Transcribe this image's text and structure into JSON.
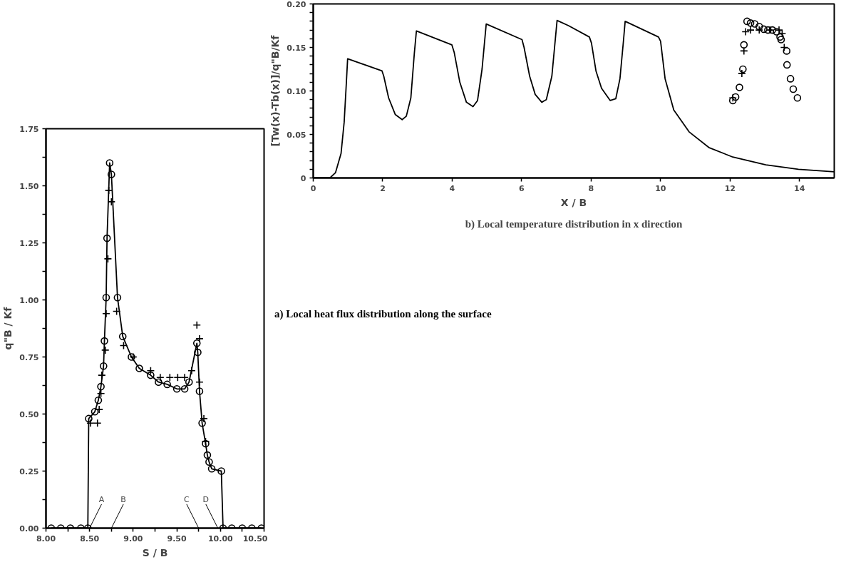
{
  "chart_data": [
    {
      "type": "line",
      "xlabel": "S / B",
      "ylabel": "q\"B / Kf",
      "xlim": [
        8,
        10.5
      ],
      "ylim": [
        0,
        1.75
      ],
      "xticks": [
        {
          "value": 8,
          "label": "8.00"
        },
        {
          "value": 8.25,
          "label": null
        },
        {
          "value": 8.5,
          "label": "8.50"
        },
        {
          "value": 8.75,
          "label": null
        },
        {
          "value": 9,
          "label": "9.00"
        },
        {
          "value": 9.25,
          "label": null
        },
        {
          "value": 9.5,
          "label": "9.50"
        },
        {
          "value": 9.75,
          "label": null
        },
        {
          "value": 10,
          "label": "10.00"
        },
        {
          "value": 10.25,
          "label": null
        },
        {
          "value": 10.5,
          "label": "10.50"
        }
      ],
      "yticks": [
        {
          "value": 0,
          "label": "0.00"
        },
        {
          "value": 0.125,
          "label": null
        },
        {
          "value": 0.25,
          "label": "0.25"
        },
        {
          "value": 0.375,
          "label": null
        },
        {
          "value": 0.5,
          "label": "0.50"
        },
        {
          "value": 0.625,
          "label": null
        },
        {
          "value": 0.75,
          "label": "0.75"
        },
        {
          "value": 0.875,
          "label": null
        },
        {
          "value": 1,
          "label": "1.00"
        },
        {
          "value": 1.125,
          "label": null
        },
        {
          "value": 1.25,
          "label": "1.25"
        },
        {
          "value": 1.375,
          "label": null
        },
        {
          "value": 1.5,
          "label": "1.50"
        },
        {
          "value": 1.625,
          "label": null
        },
        {
          "value": 1.75,
          "label": "1.75"
        }
      ],
      "series": [
        {
          "marker": "circle",
          "color": "#000000",
          "x": [
            8.06,
            8.17,
            8.28,
            8.4,
            8.48,
            8.49,
            8.56,
            8.6,
            8.63,
            8.66,
            8.67,
            8.69,
            8.7,
            8.73,
            8.75,
            8.82,
            8.88,
            8.98,
            9.07,
            9.2,
            9.29,
            9.39,
            9.5,
            9.59,
            9.64,
            9.73,
            9.74,
            9.76,
            9.79,
            9.83,
            9.85,
            9.87,
            9.9,
            10.01,
            10.03,
            10.13,
            10.25,
            10.36,
            10.47
          ],
          "values": [
            0,
            0,
            0,
            0,
            0,
            0.48,
            0.51,
            0.56,
            0.62,
            0.71,
            0.82,
            1.01,
            1.27,
            1.6,
            1.55,
            1.01,
            0.84,
            0.75,
            0.7,
            0.67,
            0.64,
            0.63,
            0.61,
            0.61,
            0.64,
            0.81,
            0.77,
            0.6,
            0.46,
            0.37,
            0.32,
            0.29,
            0.26,
            0.25,
            0,
            0,
            0,
            0,
            0
          ]
        },
        {
          "type": "scatter",
          "marker": "cross",
          "color": "#000000",
          "x": [
            8.51,
            8.59,
            8.61,
            8.63,
            8.64,
            8.68,
            8.69,
            8.71,
            8.72,
            8.75,
            8.81,
            8.89,
            9.0,
            9.2,
            9.31,
            9.42,
            9.51,
            9.59,
            9.67,
            9.73,
            9.76,
            9.76,
            9.81,
            9.83
          ],
          "values": [
            0.46,
            0.46,
            0.52,
            0.59,
            0.67,
            0.78,
            0.94,
            1.18,
            1.48,
            1.43,
            0.95,
            0.8,
            0.75,
            0.69,
            0.66,
            0.66,
            0.66,
            0.66,
            0.69,
            0.89,
            0.83,
            0.64,
            0.48,
            0.38
          ]
        }
      ],
      "annotations": [
        "a) Local heat flux distribution along the surface",
        {
          "text": "A",
          "x": 8.5,
          "y": 0
        },
        "B",
        "C",
        {
          "text": "D",
          "x": 9.97,
          "y": 0
        }
      ]
    },
    {
      "type": "line",
      "xlabel": "X / B",
      "ylabel": "[Tw(x)-Tb(x)]/q\"B/Kf",
      "xlim": [
        0,
        15
      ],
      "ylim": [
        0,
        0.2
      ],
      "xticks": [
        0,
        2,
        4,
        6,
        8,
        10,
        12,
        14
      ],
      "yticks": [
        0,
        {
          "value": 0.01,
          "label": null
        },
        {
          "value": 0.02,
          "label": null
        },
        {
          "value": 0.03,
          "label": null
        },
        {
          "value": 0.04,
          "label": null
        },
        0.05,
        {
          "value": 0.06,
          "label": null
        },
        {
          "value": 0.07,
          "label": null
        },
        {
          "value": 0.08,
          "label": null
        },
        {
          "value": 0.09,
          "label": null
        },
        {
          "value": 0.1,
          "label": "0.10"
        },
        {
          "value": 0.11,
          "label": null
        },
        {
          "value": 0.12,
          "label": null
        },
        {
          "value": 0.13,
          "label": null
        },
        {
          "value": 0.14,
          "label": null
        },
        0.15,
        {
          "value": 0.16,
          "label": null
        },
        {
          "value": 0.17,
          "label": null
        },
        {
          "value": 0.18,
          "label": null
        },
        {
          "value": 0.19,
          "label": null
        },
        {
          "value": 0.2,
          "label": "0.20"
        }
      ],
      "series": [
        {
          "color": "#000000",
          "x": [
            0,
            0.48,
            0.64,
            0.8,
            0.89,
            0.95,
            0.99,
            1.98,
            2.03,
            2.17,
            2.36,
            2.56,
            2.68,
            2.81,
            2.91,
            2.97,
            3.99,
            4.06,
            4.22,
            4.41,
            4.6,
            4.73,
            4.86,
            4.98,
            6.01,
            6.07,
            6.23,
            6.39,
            6.58,
            6.71,
            6.87,
            7.02,
            7.35,
            7.95,
            8.01,
            8.14,
            8.3,
            8.55,
            8.71,
            8.83,
            8.93,
            8.98,
            9.94,
            10.0,
            10.13,
            10.38,
            10.82,
            11.39,
            12.08,
            13.03,
            13.97,
            15
          ],
          "values": [
            0,
            0,
            0.006,
            0.028,
            0.064,
            0.107,
            0.137,
            0.123,
            0.117,
            0.092,
            0.073,
            0.067,
            0.071,
            0.092,
            0.143,
            0.169,
            0.153,
            0.144,
            0.11,
            0.087,
            0.082,
            0.089,
            0.125,
            0.177,
            0.159,
            0.15,
            0.117,
            0.096,
            0.087,
            0.09,
            0.117,
            0.181,
            0.175,
            0.162,
            0.155,
            0.123,
            0.103,
            0.089,
            0.091,
            0.114,
            0.157,
            0.18,
            0.162,
            0.157,
            0.114,
            0.078,
            0.053,
            0.035,
            0.024,
            0.015,
            0.01,
            0.007
          ]
        },
        {
          "type": "scatter",
          "marker": "circle",
          "color": "#000000",
          "x": [
            12.08,
            12.16,
            12.27,
            12.37,
            12.4,
            12.49,
            12.59,
            12.71,
            12.84,
            12.97,
            13.09,
            13.22,
            13.34,
            13.44,
            13.47,
            13.63,
            13.64,
            13.74,
            13.82,
            13.94
          ],
          "values": [
            0.089,
            0.093,
            0.104,
            0.125,
            0.153,
            0.18,
            0.178,
            0.177,
            0.174,
            0.171,
            0.17,
            0.17,
            0.168,
            0.162,
            0.159,
            0.146,
            0.13,
            0.114,
            0.102,
            0.092
          ]
        },
        {
          "type": "scatter",
          "marker": "cross",
          "color": "#000000",
          "x": [
            12.08,
            12.34,
            12.4,
            12.45,
            12.59,
            12.84,
            13.15,
            13.41,
            13.5,
            13.56
          ],
          "values": [
            0.092,
            0.12,
            0.146,
            0.168,
            0.17,
            0.17,
            0.17,
            0.17,
            0.166,
            0.15
          ]
        }
      ],
      "annotations": [
        "b) Local temperature distribution in x direction"
      ]
    }
  ]
}
